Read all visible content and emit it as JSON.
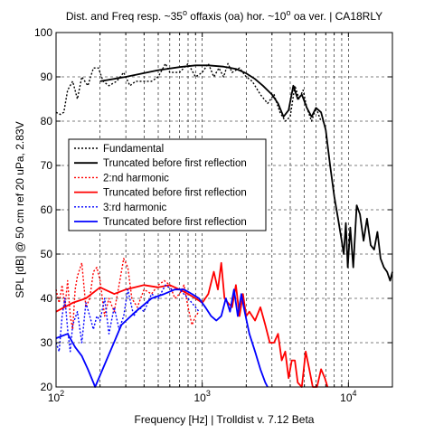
{
  "chart_data": {
    "type": "line",
    "title": {
      "main": "Dist. and Freq resp. ~35",
      "sup1": "o",
      "mid": " offaxis (oa) hor. ~10",
      "sup2": "o",
      "end": " oa ver. | CA18RLY"
    },
    "xlabel": "Frequency [Hz] | Trolldist v. 7.12 Beta",
    "ylabel": "SPL [dB] @ 50 cm ref 20 uPa, 2.83V",
    "x_scale": "log",
    "xlim": [
      100,
      20000
    ],
    "ylim": [
      20,
      100
    ],
    "grid": true,
    "x_ticks": [
      {
        "value": 100,
        "base": "10",
        "exp": "2"
      },
      {
        "value": 1000,
        "base": "10",
        "exp": "3"
      },
      {
        "value": 10000,
        "base": "10",
        "exp": "4"
      }
    ],
    "y_ticks": [
      20,
      30,
      40,
      50,
      60,
      70,
      80,
      90,
      100
    ],
    "legend_position": "center-left",
    "series": [
      {
        "name": "Fundamental",
        "color": "#000000",
        "style": "dotted",
        "points": [
          [
            100,
            82
          ],
          [
            107,
            81.5
          ],
          [
            113,
            82
          ],
          [
            120,
            87
          ],
          [
            130,
            89
          ],
          [
            140,
            85
          ],
          [
            150,
            90
          ],
          [
            165,
            88
          ],
          [
            180,
            92
          ],
          [
            195,
            92
          ],
          [
            210,
            89
          ],
          [
            230,
            88
          ],
          [
            260,
            89
          ],
          [
            290,
            91
          ],
          [
            320,
            88
          ],
          [
            350,
            89
          ],
          [
            400,
            89
          ],
          [
            450,
            89
          ],
          [
            500,
            90
          ],
          [
            560,
            93
          ],
          [
            600,
            91
          ],
          [
            700,
            91
          ],
          [
            800,
            93
          ],
          [
            900,
            90
          ],
          [
            1000,
            91
          ],
          [
            1100,
            93
          ],
          [
            1200,
            90
          ],
          [
            1300,
            92
          ],
          [
            1400,
            90
          ],
          [
            1500,
            93
          ],
          [
            1600,
            91
          ],
          [
            1800,
            92
          ],
          [
            2000,
            90
          ],
          [
            2200,
            89
          ],
          [
            2500,
            86
          ],
          [
            2800,
            84
          ],
          [
            3100,
            86
          ],
          [
            3400,
            82
          ],
          [
            3700,
            80
          ],
          [
            4000,
            81
          ],
          [
            4300,
            88
          ],
          [
            4600,
            85
          ],
          [
            4900,
            87
          ],
          [
            5200,
            83
          ],
          [
            5600,
            80
          ],
          [
            6000,
            83
          ],
          [
            6500,
            80
          ]
        ]
      },
      {
        "name": "Truncated before first reflection",
        "color": "#000000",
        "style": "solid",
        "points": [
          [
            200,
            89
          ],
          [
            300,
            90
          ],
          [
            500,
            91.5
          ],
          [
            700,
            92.2
          ],
          [
            900,
            92.6
          ],
          [
            1100,
            92.6
          ],
          [
            1400,
            92.3
          ],
          [
            1700,
            91.8
          ],
          [
            2000,
            90.8
          ],
          [
            2300,
            89.5
          ],
          [
            2600,
            88
          ],
          [
            3000,
            86
          ],
          [
            3300,
            84
          ],
          [
            3600,
            81
          ],
          [
            3900,
            82.5
          ],
          [
            4200,
            88
          ],
          [
            4500,
            85
          ],
          [
            4800,
            86
          ],
          [
            5200,
            83
          ],
          [
            5600,
            81
          ],
          [
            6000,
            83
          ],
          [
            6500,
            82
          ],
          [
            7000,
            78
          ],
          [
            7500,
            70
          ],
          [
            8000,
            63
          ],
          [
            8500,
            58
          ],
          [
            9000,
            53
          ],
          [
            9300,
            50
          ],
          [
            9600,
            57
          ],
          [
            9900,
            47
          ],
          [
            10300,
            56
          ],
          [
            10800,
            47
          ],
          [
            11400,
            61
          ],
          [
            12000,
            59
          ],
          [
            12700,
            53
          ],
          [
            13400,
            58
          ],
          [
            14200,
            52
          ],
          [
            15000,
            51
          ],
          [
            15800,
            55
          ],
          [
            16600,
            49
          ],
          [
            17500,
            47
          ],
          [
            18400,
            46
          ],
          [
            19300,
            44
          ],
          [
            20000,
            46
          ]
        ]
      },
      {
        "name": "2:nd harmonic",
        "color": "#ff0000",
        "style": "dotted",
        "points": [
          [
            100,
            42
          ],
          [
            105,
            39
          ],
          [
            110,
            43
          ],
          [
            115,
            38
          ],
          [
            120,
            44
          ],
          [
            125,
            36
          ],
          [
            130,
            33
          ],
          [
            135,
            42
          ],
          [
            140,
            45
          ],
          [
            150,
            48
          ],
          [
            160,
            38
          ],
          [
            170,
            40
          ],
          [
            180,
            46
          ],
          [
            190,
            47
          ],
          [
            200,
            44
          ],
          [
            215,
            36
          ],
          [
            230,
            40
          ],
          [
            250,
            37
          ],
          [
            270,
            43
          ],
          [
            290,
            49
          ],
          [
            310,
            47
          ],
          [
            330,
            40
          ],
          [
            360,
            38
          ],
          [
            400,
            42
          ],
          [
            450,
            41
          ],
          [
            500,
            43
          ],
          [
            550,
            44
          ],
          [
            600,
            43
          ],
          [
            650,
            40
          ],
          [
            700,
            41
          ],
          [
            750,
            43
          ],
          [
            800,
            38
          ],
          [
            850,
            34
          ],
          [
            900,
            36
          ],
          [
            950,
            37
          ]
        ]
      },
      {
        "name": "Truncated before first reflection",
        "color": "#ff0000",
        "style": "solid",
        "points": [
          [
            100,
            37
          ],
          [
            130,
            39
          ],
          [
            160,
            40
          ],
          [
            200,
            42.5
          ],
          [
            250,
            41
          ],
          [
            300,
            42
          ],
          [
            400,
            43
          ],
          [
            500,
            42.5
          ],
          [
            600,
            43
          ],
          [
            700,
            42
          ],
          [
            800,
            41
          ],
          [
            900,
            40
          ],
          [
            1000,
            39
          ],
          [
            1100,
            41
          ],
          [
            1200,
            46
          ],
          [
            1280,
            42
          ],
          [
            1350,
            48
          ],
          [
            1420,
            40
          ],
          [
            1500,
            39
          ],
          [
            1600,
            38
          ],
          [
            1700,
            43
          ],
          [
            1800,
            36
          ],
          [
            1900,
            41
          ],
          [
            2000,
            36
          ],
          [
            2100,
            37
          ],
          [
            2300,
            35
          ],
          [
            2500,
            38
          ],
          [
            2700,
            34
          ],
          [
            2900,
            30
          ],
          [
            3100,
            30
          ],
          [
            3300,
            32
          ],
          [
            3500,
            26
          ],
          [
            3700,
            28
          ],
          [
            3900,
            22
          ],
          [
            4100,
            26
          ],
          [
            4300,
            26
          ],
          [
            4500,
            21
          ],
          [
            4800,
            20
          ],
          [
            5100,
            28
          ],
          [
            5400,
            24
          ],
          [
            5700,
            20
          ],
          [
            6100,
            20
          ],
          [
            6500,
            24
          ],
          [
            6900,
            22
          ],
          [
            7200,
            20
          ]
        ]
      },
      {
        "name": "3:rd harmonic",
        "color": "#0000ff",
        "style": "dotted",
        "points": [
          [
            100,
            30
          ],
          [
            105,
            28
          ],
          [
            110,
            36
          ],
          [
            115,
            40
          ],
          [
            120,
            33
          ],
          [
            125,
            28
          ],
          [
            130,
            34
          ],
          [
            140,
            37
          ],
          [
            150,
            30
          ],
          [
            160,
            39
          ],
          [
            170,
            36
          ],
          [
            180,
            33
          ],
          [
            190,
            36
          ],
          [
            200,
            35
          ],
          [
            215,
            40
          ],
          [
            230,
            32
          ],
          [
            250,
            38
          ],
          [
            270,
            33
          ],
          [
            290,
            36
          ],
          [
            310,
            42
          ],
          [
            340,
            36
          ],
          [
            370,
            38
          ],
          [
            400,
            37
          ],
          [
            450,
            41
          ],
          [
            500,
            40
          ],
          [
            560,
            43
          ],
          [
            620,
            42
          ],
          [
            700,
            42
          ],
          [
            800,
            40
          ],
          [
            900,
            38
          ],
          [
            950,
            37
          ]
        ]
      },
      {
        "name": "Truncated before first reflection",
        "color": "#0000ff",
        "style": "solid",
        "points": [
          [
            100,
            31
          ],
          [
            120,
            32
          ],
          [
            135,
            29
          ],
          [
            150,
            27
          ],
          [
            165,
            24
          ],
          [
            180,
            21
          ],
          [
            185,
            20
          ],
          [
            280,
            34
          ],
          [
            350,
            37
          ],
          [
            450,
            40
          ],
          [
            550,
            41
          ],
          [
            650,
            42
          ],
          [
            750,
            42
          ],
          [
            850,
            41
          ],
          [
            950,
            40
          ],
          [
            1050,
            38
          ],
          [
            1150,
            36
          ],
          [
            1250,
            35
          ],
          [
            1350,
            36
          ],
          [
            1450,
            40
          ],
          [
            1550,
            37
          ],
          [
            1650,
            42
          ],
          [
            1750,
            36
          ],
          [
            1850,
            41
          ],
          [
            1950,
            37
          ],
          [
            2100,
            32
          ],
          [
            2300,
            28
          ],
          [
            2500,
            24
          ],
          [
            2700,
            21
          ],
          [
            2800,
            20
          ]
        ]
      }
    ]
  }
}
